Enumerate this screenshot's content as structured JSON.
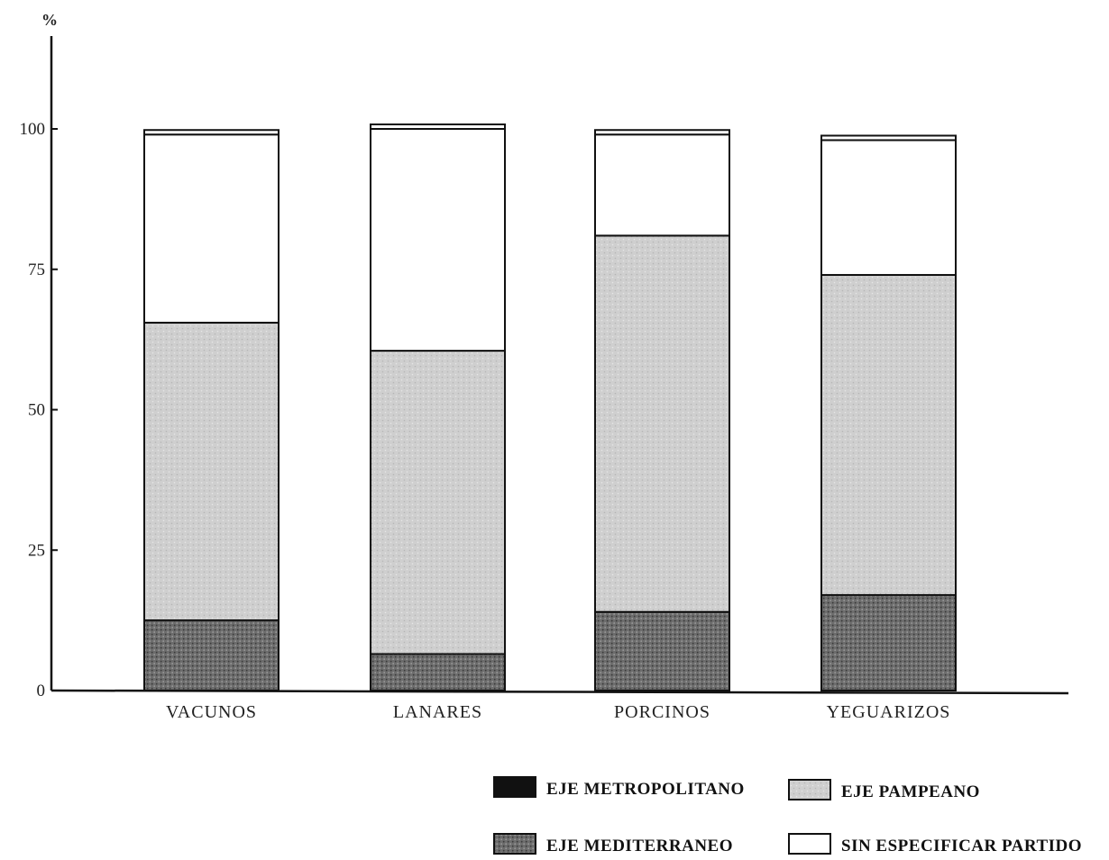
{
  "chart_data": {
    "type": "bar",
    "stacked": true,
    "percent_scale": true,
    "unit_label": "%",
    "categories": [
      "VACUNOS",
      "LANARES",
      "PORCINOS",
      "YEGUARIZOS"
    ],
    "series": [
      {
        "name": "EJE METROPOLITANO",
        "values": [
          0,
          0,
          0,
          0
        ],
        "color": "#111111"
      },
      {
        "name": "EJE MEDITERRANEO",
        "values": [
          12.5,
          6.5,
          14,
          17
        ],
        "color": "#555555"
      },
      {
        "name": "EJE PAMPEANO",
        "values": [
          53,
          54,
          67,
          57
        ],
        "color": "#c8c8c8"
      },
      {
        "name": "SIN ESPECIFICAR PARTIDO",
        "values": [
          33.5,
          39.5,
          18,
          24
        ],
        "color": "#ffffff"
      }
    ],
    "ylim": [
      0,
      100
    ],
    "yticks": [
      0,
      25,
      50,
      75,
      100
    ],
    "ytick_labels": [
      "0",
      "25",
      "50",
      "75",
      "100"
    ],
    "title": "",
    "xlabel": "",
    "ylabel": "",
    "grid": false,
    "legend_position": "bottom-right",
    "legend_order": [
      "EJE METROPOLITANO",
      "EJE PAMPEANO",
      "EJE MEDITERRANEO",
      "SIN ESPECIFICAR PARTIDO"
    ]
  }
}
